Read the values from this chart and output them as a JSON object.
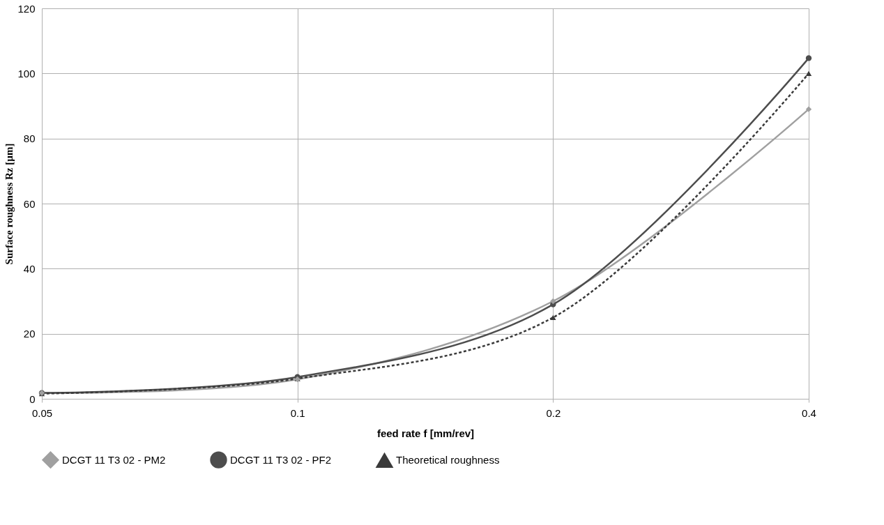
{
  "chart_data": {
    "type": "line",
    "xlabel": "feed rate f [mm/rev]",
    "ylabel": "Surface roughness Rz [µm]",
    "categories": [
      "0.05",
      "0.1",
      "0.2",
      "0.4"
    ],
    "series": [
      {
        "name": "DCGT 11 T3 02 - PM2",
        "color": "#a0a0a0",
        "values": [
          1.8,
          6,
          30,
          89
        ],
        "marker": "diamond",
        "line_style": "solid"
      },
      {
        "name": "DCGT 11 T3 02 - PF2",
        "color": "#4d4d4d",
        "values": [
          1.8,
          6.7,
          29,
          104.7
        ],
        "marker": "circle",
        "line_style": "solid"
      },
      {
        "name": "Theoretical roughness",
        "color": "#3a3a3a",
        "values": [
          1.6,
          6.2,
          25,
          100
        ],
        "marker": "triangle",
        "line_style": "dashed"
      }
    ],
    "ylim": [
      0,
      120
    ],
    "yticks": [
      0,
      20,
      40,
      60,
      80,
      100,
      120
    ],
    "grid": true,
    "legend": "bottom"
  }
}
